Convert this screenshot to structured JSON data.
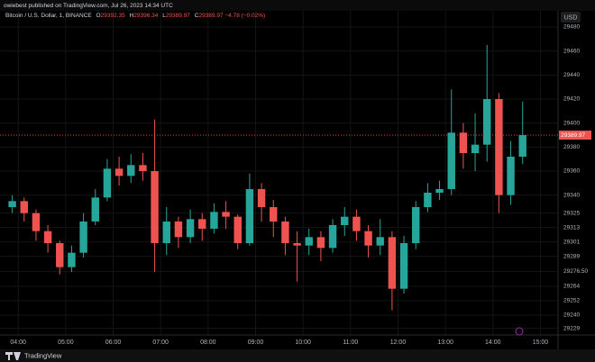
{
  "header": {
    "publisher": "owiebest published on TradingView.com, Jul 26, 2023 14:34 UTC"
  },
  "footer": {
    "brand": "TradingView"
  },
  "chart_data": {
    "type": "candlestick",
    "title": "Bitcoin / U.S. Dollar, 1, BINANCE",
    "legend": {
      "open_label": "O",
      "open": 29392.35,
      "high_label": "H",
      "high": 29396.34,
      "low_label": "L",
      "low": 29389.97,
      "close_label": "C",
      "close": 29389.97,
      "change": {
        "value": -4.78,
        "label": "−4.78"
      },
      "change_percent": {
        "value": -0.02,
        "label": "(−0.02%)"
      }
    },
    "currency": "USD",
    "last_price": 29389.97,
    "up_color": "#26a69a",
    "down_color": "#ef5350",
    "x": [
      "03:45",
      "04:00",
      "04:15",
      "04:30",
      "04:45",
      "05:00",
      "05:15",
      "05:30",
      "05:45",
      "06:00",
      "06:15",
      "06:30",
      "06:45",
      "07:00",
      "07:15",
      "07:30",
      "07:45",
      "08:00",
      "08:15",
      "08:30",
      "08:45",
      "09:00",
      "09:15",
      "09:30",
      "09:45",
      "10:00",
      "10:15",
      "10:30",
      "10:45",
      "11:00",
      "11:15",
      "11:30",
      "11:45",
      "12:00",
      "12:15",
      "12:30",
      "12:45",
      "13:00",
      "13:15",
      "13:30",
      "13:45",
      "14:00",
      "14:15",
      "14:30"
    ],
    "open": [
      29330,
      29335,
      29325,
      29310,
      29300,
      29280,
      29292,
      29318,
      29338,
      29362,
      29356,
      29365,
      29360,
      29300,
      29318,
      29305,
      29320,
      29312,
      29326,
      29322,
      29300,
      29345,
      29330,
      29318,
      29300,
      29298,
      29305,
      29296,
      29315,
      29322,
      29310,
      29298,
      29305,
      29262,
      29300,
      29330,
      29342,
      29345,
      29392,
      29375,
      29382,
      29420,
      29340,
      29372
    ],
    "high": [
      29340,
      29338,
      29328,
      29315,
      29302,
      29298,
      29325,
      29345,
      29370,
      29372,
      29374,
      29375,
      29403,
      29330,
      29322,
      29328,
      29325,
      29333,
      29335,
      29324,
      29358,
      29350,
      29336,
      29322,
      29310,
      29312,
      29310,
      29320,
      29330,
      29328,
      29315,
      29320,
      29310,
      29306,
      29335,
      29350,
      29352,
      29428,
      29400,
      29408,
      29465,
      29425,
      29385,
      29418
    ],
    "low": [
      29325,
      29318,
      29302,
      29292,
      29274,
      29276,
      29288,
      29315,
      29335,
      29348,
      29350,
      29352,
      29276,
      29290,
      29296,
      29300,
      29302,
      29308,
      29312,
      29295,
      29298,
      29318,
      29305,
      29290,
      29268,
      29290,
      29285,
      29292,
      29306,
      29302,
      29288,
      29290,
      29244,
      29258,
      29295,
      29326,
      29336,
      29340,
      29362,
      29360,
      29368,
      29325,
      29332,
      29366
    ],
    "close": [
      29335,
      29325,
      29310,
      29300,
      29280,
      29292,
      29318,
      29338,
      29362,
      29356,
      29365,
      29360,
      29300,
      29318,
      29305,
      29320,
      29312,
      29326,
      29322,
      29300,
      29345,
      29330,
      29318,
      29300,
      29298,
      29305,
      29296,
      29315,
      29322,
      29310,
      29298,
      29305,
      29262,
      29300,
      29330,
      29342,
      29345,
      29392,
      29375,
      29382,
      29420,
      29340,
      29372,
      29389.97
    ],
    "xlim": [
      "03:37",
      "15:12"
    ],
    "xticks": [
      "04:00",
      "05:00",
      "06:00",
      "07:00",
      "08:00",
      "09:00",
      "10:00",
      "11:00",
      "12:00",
      "13:00",
      "14:00",
      "15:00"
    ],
    "ylim": [
      29223.5,
      29484.5
    ],
    "yticks": [
      29480,
      29460,
      29440,
      29420,
      29400,
      29380,
      29360,
      29340,
      29325,
      29313,
      29301,
      29289,
      {
        "value": 29276.5,
        "label": "29276.50"
      },
      29264,
      29252,
      29240,
      29229
    ],
    "grid": true
  }
}
